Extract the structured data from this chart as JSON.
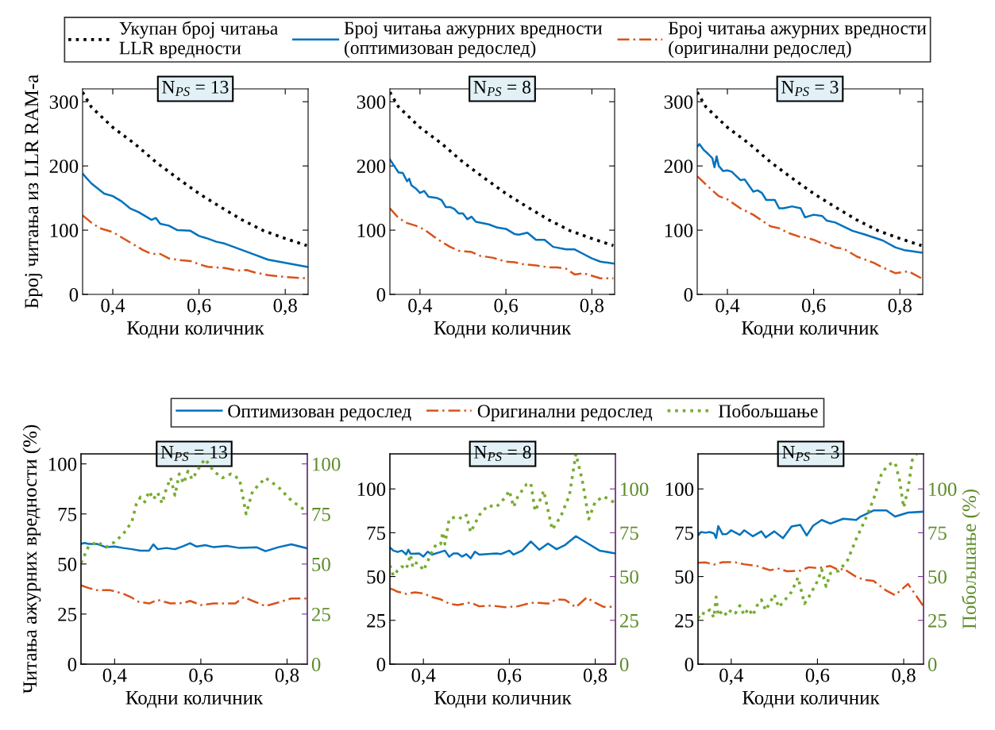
{
  "chart_data": [
    {
      "type": "line",
      "title": "N$_{PS}$ = 13",
      "xlabel": "Кодни количник",
      "ylabel": "Број читања из LLR RAM-а",
      "legend": "top",
      "xlim": [
        0.33,
        0.853
      ],
      "ylim": [
        0,
        320
      ],
      "xticks": [
        {
          "value": 0.4,
          "label": "0,4"
        },
        {
          "value": 0.6,
          "label": "0,6"
        },
        {
          "value": 0.8,
          "label": "0,8"
        }
      ],
      "yticks": [
        0,
        100,
        200,
        300
      ],
      "series": [
        {
          "name": "Укупан број читања\nLLR вредности",
          "color": "#000000",
          "line_style": "dotted",
          "x": [
            0.33,
            0.35,
            0.4,
            0.45,
            0.5,
            0.55,
            0.6,
            0.65,
            0.7,
            0.75,
            0.8,
            0.85
          ],
          "values": [
            315,
            292,
            260,
            235,
            206,
            181,
            157,
            136,
            116,
            99,
            87,
            76
          ]
        },
        {
          "name": "Број читања ажурних вредности\n(оптимизован редослед)",
          "color": "#0072bd",
          "line_style": "solid",
          "x": [
            0.33,
            0.35,
            0.38,
            0.4,
            0.42,
            0.44,
            0.46,
            0.48,
            0.49,
            0.5,
            0.51,
            0.53,
            0.55,
            0.58,
            0.6,
            0.62,
            0.64,
            0.66,
            0.7,
            0.72,
            0.76,
            0.8,
            0.85
          ],
          "values": [
            188,
            173,
            157,
            153,
            145,
            134,
            128,
            120,
            116,
            119,
            110,
            107,
            100,
            99,
            91,
            87,
            82,
            79,
            69,
            64,
            54,
            49,
            43
          ]
        },
        {
          "name": "Број читања ажурних вредности\n(оригинални редослед)",
          "color": "#d95319",
          "line_style": "dashed",
          "x": [
            0.33,
            0.35,
            0.37,
            0.4,
            0.42,
            0.45,
            0.47,
            0.49,
            0.51,
            0.53,
            0.56,
            0.58,
            0.6,
            0.62,
            0.66,
            0.69,
            0.71,
            0.73,
            0.76,
            0.8,
            0.85
          ],
          "values": [
            123,
            112,
            103,
            97,
            89,
            77,
            69,
            63,
            63,
            56,
            53,
            52,
            47,
            43,
            41,
            37,
            38,
            34,
            30,
            27,
            25
          ]
        }
      ]
    },
    {
      "type": "line",
      "title": "N$_{PS}$ = 8",
      "xlabel": "Кодни количник",
      "xlim": [
        0.33,
        0.853
      ],
      "ylim": [
        0,
        320
      ],
      "xticks": [
        {
          "value": 0.4,
          "label": "0,4"
        },
        {
          "value": 0.6,
          "label": "0,6"
        },
        {
          "value": 0.8,
          "label": "0,8"
        }
      ],
      "yticks": [
        0,
        100,
        200,
        300
      ],
      "series": [
        {
          "color": "#000000",
          "line_style": "dotted",
          "x": [
            0.33,
            0.35,
            0.4,
            0.45,
            0.5,
            0.55,
            0.6,
            0.65,
            0.7,
            0.75,
            0.8,
            0.85
          ],
          "values": [
            315,
            292,
            260,
            235,
            206,
            181,
            157,
            136,
            116,
            99,
            87,
            76
          ]
        },
        {
          "color": "#0072bd",
          "line_style": "solid",
          "x": [
            0.33,
            0.34,
            0.35,
            0.36,
            0.37,
            0.375,
            0.38,
            0.39,
            0.4,
            0.41,
            0.42,
            0.44,
            0.45,
            0.46,
            0.47,
            0.48,
            0.49,
            0.5,
            0.51,
            0.52,
            0.53,
            0.56,
            0.58,
            0.6,
            0.62,
            0.63,
            0.65,
            0.67,
            0.69,
            0.71,
            0.74,
            0.76,
            0.78,
            0.8,
            0.82,
            0.85
          ],
          "values": [
            210,
            200,
            190,
            189,
            176,
            180,
            170,
            165,
            158,
            161,
            152,
            150,
            147,
            136,
            136,
            133,
            126,
            126,
            117,
            121,
            113,
            109,
            104,
            102,
            94,
            93,
            96,
            85,
            85,
            74,
            70,
            70,
            63,
            56,
            51,
            48
          ]
        },
        {
          "color": "#d95319",
          "line_style": "dashed",
          "x": [
            0.33,
            0.35,
            0.37,
            0.39,
            0.41,
            0.43,
            0.45,
            0.47,
            0.49,
            0.52,
            0.54,
            0.57,
            0.6,
            0.62,
            0.64,
            0.67,
            0.7,
            0.72,
            0.74,
            0.76,
            0.78,
            0.8,
            0.82,
            0.85
          ],
          "values": [
            134,
            119,
            111,
            107,
            101,
            91,
            82,
            74,
            68,
            66,
            60,
            57,
            51,
            50,
            47,
            45,
            42,
            42,
            40,
            31,
            33,
            29,
            25,
            25
          ]
        }
      ]
    },
    {
      "type": "line",
      "title": "N$_{PS}$ = 3",
      "xlabel": "Кодни количник",
      "xlim": [
        0.33,
        0.853
      ],
      "ylim": [
        0,
        320
      ],
      "xticks": [
        {
          "value": 0.4,
          "label": "0,4"
        },
        {
          "value": 0.6,
          "label": "0,6"
        },
        {
          "value": 0.8,
          "label": "0,8"
        }
      ],
      "yticks": [
        0,
        100,
        200,
        300
      ],
      "series": [
        {
          "color": "#000000",
          "line_style": "dotted",
          "x": [
            0.33,
            0.35,
            0.4,
            0.45,
            0.5,
            0.55,
            0.6,
            0.65,
            0.7,
            0.75,
            0.8,
            0.85
          ],
          "values": [
            315,
            292,
            260,
            235,
            206,
            181,
            157,
            136,
            116,
            99,
            87,
            76
          ]
        },
        {
          "color": "#0072bd",
          "line_style": "solid",
          "x": [
            0.33,
            0.335,
            0.345,
            0.355,
            0.365,
            0.37,
            0.375,
            0.38,
            0.39,
            0.4,
            0.41,
            0.43,
            0.44,
            0.46,
            0.47,
            0.48,
            0.49,
            0.51,
            0.52,
            0.53,
            0.55,
            0.57,
            0.58,
            0.6,
            0.62,
            0.63,
            0.65,
            0.69,
            0.72,
            0.76,
            0.79,
            0.81,
            0.83,
            0.85
          ],
          "values": [
            230,
            234,
            225,
            219,
            212,
            198,
            215,
            200,
            192,
            193,
            191,
            178,
            179,
            160,
            162,
            158,
            147,
            147,
            134,
            134,
            137,
            134,
            120,
            124,
            122,
            115,
            112,
            99,
            93,
            84,
            73,
            69,
            67,
            65
          ]
        },
        {
          "color": "#d95319",
          "line_style": "dashed",
          "x": [
            0.33,
            0.36,
            0.38,
            0.4,
            0.43,
            0.46,
            0.5,
            0.52,
            0.54,
            0.57,
            0.58,
            0.6,
            0.62,
            0.63,
            0.65,
            0.67,
            0.7,
            0.72,
            0.74,
            0.76,
            0.79,
            0.82,
            0.85
          ],
          "values": [
            184,
            165,
            153,
            148,
            134,
            124,
            106,
            103,
            96,
            89,
            89,
            85,
            79,
            80,
            73,
            71,
            59,
            54,
            49,
            42,
            33,
            36,
            25
          ]
        }
      ]
    },
    {
      "type": "line",
      "title": "N$_{PS}$ = 13",
      "xlabel": "Кодни количник",
      "ylabel": "Читања ажурних вредности (%)",
      "legend": "top",
      "xlim": [
        0.322,
        0.847
      ],
      "ylim": [
        0,
        105
      ],
      "y2lim": [
        0,
        105
      ],
      "xticks": [
        {
          "value": 0.4,
          "label": "0,4"
        },
        {
          "value": 0.6,
          "label": "0,6"
        },
        {
          "value": 0.8,
          "label": "0,8"
        }
      ],
      "yticks": [
        0,
        25,
        50,
        75,
        100
      ],
      "y2ticks": [
        0,
        25,
        50,
        75,
        100
      ],
      "series": [
        {
          "name": "Оптимизован редослед",
          "color": "#0072bd",
          "line_style": "solid",
          "x": [
            0.322,
            0.33,
            0.34,
            0.36,
            0.38,
            0.4,
            0.42,
            0.44,
            0.46,
            0.48,
            0.49,
            0.5,
            0.52,
            0.54,
            0.56,
            0.575,
            0.59,
            0.61,
            0.63,
            0.66,
            0.69,
            0.73,
            0.75,
            0.78,
            0.81,
            0.847
          ],
          "values": [
            60,
            60.5,
            60,
            60,
            58.4,
            58.7,
            58,
            57.4,
            56.7,
            56.7,
            59.8,
            57.4,
            58,
            57.4,
            59,
            60.4,
            58.7,
            59.4,
            58.4,
            59,
            58,
            58.3,
            56.4,
            58.4,
            59.8,
            57.8
          ]
        },
        {
          "name": "Оригинални редослед",
          "color": "#d95319",
          "line_style": "dashed",
          "x": [
            0.322,
            0.34,
            0.36,
            0.39,
            0.42,
            0.44,
            0.455,
            0.48,
            0.5,
            0.53,
            0.56,
            0.575,
            0.6,
            0.63,
            0.66,
            0.68,
            0.7,
            0.72,
            0.75,
            0.78,
            0.81,
            0.847
          ],
          "values": [
            39.4,
            38,
            36.9,
            36.9,
            35.2,
            33.2,
            31.2,
            30.3,
            32.1,
            30.3,
            30.5,
            31.6,
            29.5,
            30.3,
            30.3,
            30.3,
            33.5,
            31.6,
            29,
            30.8,
            32.8,
            32.8
          ]
        },
        {
          "name": "Побољшање",
          "color": "#77ac30",
          "line_style": "dotted",
          "axis": "y2",
          "x": [
            0.322,
            0.34,
            0.36,
            0.38,
            0.4,
            0.42,
            0.44,
            0.45,
            0.46,
            0.47,
            0.48,
            0.49,
            0.5,
            0.51,
            0.52,
            0.53,
            0.54,
            0.55,
            0.56,
            0.57,
            0.58,
            0.6,
            0.61,
            0.63,
            0.65,
            0.67,
            0.69,
            0.705,
            0.72,
            0.75,
            0.78,
            0.81,
            0.847
          ],
          "values": [
            50.5,
            59,
            61,
            58.4,
            61,
            65,
            71,
            79.7,
            83.4,
            81,
            86.3,
            82.3,
            85.6,
            80.3,
            87.6,
            93,
            84.3,
            95,
            90.3,
            96.3,
            92.3,
            99.6,
            102.5,
            96.3,
            93,
            95,
            92.3,
            75,
            86.3,
            93,
            88.4,
            81.7,
            76
          ]
        }
      ]
    },
    {
      "type": "line",
      "title": "N$_{PS}$ = 8",
      "xlabel": "Кодни количник",
      "xlim": [
        0.322,
        0.847
      ],
      "ylim": [
        0,
        120
      ],
      "y2lim": [
        0,
        120
      ],
      "xticks": [
        {
          "value": 0.4,
          "label": "0,4"
        },
        {
          "value": 0.6,
          "label": "0,6"
        },
        {
          "value": 0.8,
          "label": "0,8"
        }
      ],
      "yticks": [
        0,
        25,
        50,
        75,
        100
      ],
      "y2ticks": [
        0,
        25,
        50,
        75,
        100
      ],
      "series": [
        {
          "color": "#0072bd",
          "line_style": "solid",
          "x": [
            0.322,
            0.33,
            0.34,
            0.35,
            0.36,
            0.365,
            0.37,
            0.39,
            0.4,
            0.41,
            0.42,
            0.44,
            0.45,
            0.46,
            0.47,
            0.48,
            0.49,
            0.5,
            0.51,
            0.52,
            0.53,
            0.57,
            0.58,
            0.6,
            0.61,
            0.63,
            0.65,
            0.67,
            0.69,
            0.71,
            0.73,
            0.755,
            0.78,
            0.81,
            0.847
          ],
          "values": [
            66.6,
            64.8,
            64,
            64.8,
            62.6,
            65.3,
            63,
            63.2,
            61.4,
            64.2,
            62.5,
            64,
            64.8,
            61.3,
            63.2,
            63.2,
            61.4,
            62.8,
            60.4,
            64.2,
            62.5,
            63.2,
            62.8,
            64.8,
            62.5,
            64.8,
            70,
            65.3,
            68.8,
            65.6,
            68,
            73,
            69.3,
            64.8,
            63.2
          ]
        },
        {
          "color": "#d95319",
          "line_style": "dashed",
          "x": [
            0.322,
            0.33,
            0.34,
            0.36,
            0.38,
            0.4,
            0.42,
            0.44,
            0.46,
            0.48,
            0.51,
            0.53,
            0.56,
            0.59,
            0.62,
            0.65,
            0.67,
            0.69,
            0.71,
            0.73,
            0.755,
            0.78,
            0.8,
            0.82,
            0.847
          ],
          "values": [
            43.2,
            42.5,
            41.3,
            40.1,
            41,
            40.4,
            38.3,
            37,
            34.5,
            33.7,
            35.2,
            33,
            33.4,
            32.5,
            33,
            35,
            35,
            34.5,
            37,
            36.7,
            32.5,
            38,
            35,
            32.7,
            32.7
          ]
        },
        {
          "color": "#77ac30",
          "line_style": "dotted",
          "axis": "y2",
          "x": [
            0.322,
            0.33,
            0.34,
            0.35,
            0.36,
            0.37,
            0.375,
            0.38,
            0.39,
            0.4,
            0.41,
            0.42,
            0.43,
            0.44,
            0.445,
            0.45,
            0.46,
            0.48,
            0.49,
            0.5,
            0.51,
            0.53,
            0.55,
            0.57,
            0.59,
            0.6,
            0.61,
            0.62,
            0.64,
            0.65,
            0.66,
            0.67,
            0.68,
            0.7,
            0.72,
            0.74,
            0.755,
            0.77,
            0.785,
            0.8,
            0.82,
            0.847
          ],
          "values": [
            56.4,
            50.4,
            53.4,
            55.7,
            54.2,
            62.5,
            55.7,
            58,
            57.2,
            53.4,
            58.7,
            64,
            68.5,
            68.5,
            75.3,
            68.5,
            82.8,
            84.4,
            82.8,
            85,
            75.3,
            85,
            90.5,
            89.7,
            95,
            99,
            89.7,
            95.7,
            102.6,
            103.3,
            87.4,
            92.7,
            99,
            76.8,
            84.4,
            96.5,
            120,
            104.8,
            82.8,
            92.7,
            95.7,
            91.9
          ]
        }
      ]
    },
    {
      "type": "line",
      "title": "N$_{PS}$ = 3",
      "xlabel": "Кодни количник",
      "y2label": "Побољшање (%)",
      "xlim": [
        0.323,
        0.846
      ],
      "ylim": [
        0,
        120
      ],
      "y2lim": [
        0,
        120
      ],
      "xticks": [
        {
          "value": 0.4,
          "label": "0,4"
        },
        {
          "value": 0.6,
          "label": "0,6"
        },
        {
          "value": 0.8,
          "label": "0,8"
        }
      ],
      "yticks": [
        0,
        25,
        50,
        75,
        100
      ],
      "y2ticks": [
        0,
        25,
        50,
        75,
        100
      ],
      "series": [
        {
          "color": "#0072bd",
          "line_style": "solid",
          "x": [
            0.323,
            0.33,
            0.34,
            0.35,
            0.36,
            0.365,
            0.37,
            0.38,
            0.39,
            0.4,
            0.42,
            0.43,
            0.45,
            0.47,
            0.48,
            0.5,
            0.52,
            0.54,
            0.56,
            0.575,
            0.59,
            0.61,
            0.63,
            0.66,
            0.69,
            0.7,
            0.73,
            0.76,
            0.78,
            0.81,
            0.846
          ],
          "values": [
            73.4,
            75.4,
            75,
            75.4,
            74.6,
            71.9,
            78.8,
            74.1,
            74.3,
            76.4,
            73.8,
            76.4,
            73,
            75.8,
            72.3,
            75.8,
            71.9,
            78.6,
            79.5,
            73.4,
            79,
            82.3,
            80.2,
            83,
            82.3,
            84.2,
            87.7,
            87.7,
            84.2,
            86.5,
            87
          ]
        },
        {
          "color": "#d95319",
          "line_style": "dashed",
          "x": [
            0.323,
            0.34,
            0.36,
            0.38,
            0.41,
            0.43,
            0.46,
            0.49,
            0.51,
            0.53,
            0.56,
            0.58,
            0.6,
            0.63,
            0.65,
            0.66,
            0.69,
            0.71,
            0.73,
            0.76,
            0.78,
            0.81,
            0.846
          ],
          "values": [
            57.8,
            58.1,
            56.8,
            58.2,
            58.1,
            57,
            56,
            53.6,
            54.5,
            53,
            53.3,
            55.3,
            54.8,
            56,
            53.6,
            54.5,
            49.8,
            48,
            47.5,
            41.9,
            39.4,
            45.8,
            33
          ]
        },
        {
          "color": "#77ac30",
          "line_style": "dotted",
          "axis": "y2",
          "x": [
            0.323,
            0.33,
            0.34,
            0.35,
            0.36,
            0.365,
            0.37,
            0.38,
            0.39,
            0.4,
            0.41,
            0.42,
            0.43,
            0.44,
            0.45,
            0.46,
            0.47,
            0.48,
            0.49,
            0.5,
            0.51,
            0.52,
            0.54,
            0.555,
            0.57,
            0.58,
            0.6,
            0.61,
            0.62,
            0.63,
            0.65,
            0.67,
            0.69,
            0.71,
            0.73,
            0.75,
            0.77,
            0.78,
            0.79,
            0.8,
            0.81,
            0.82,
            0.83
          ],
          "values": [
            26.2,
            29.5,
            28.5,
            31,
            26.5,
            38.3,
            27.7,
            30.7,
            27.7,
            31,
            29.2,
            33.4,
            28,
            31.7,
            27.7,
            33.4,
            36.7,
            30.7,
            35.2,
            39.7,
            32.5,
            35.2,
            41.3,
            49.5,
            34.5,
            38.3,
            47.3,
            54,
            44.3,
            51.8,
            53.3,
            59.4,
            71.5,
            82,
            94,
            109.8,
            114.4,
            115,
            105.4,
            89.4,
            99.9,
            116.5,
            120
          ]
        }
      ]
    }
  ]
}
